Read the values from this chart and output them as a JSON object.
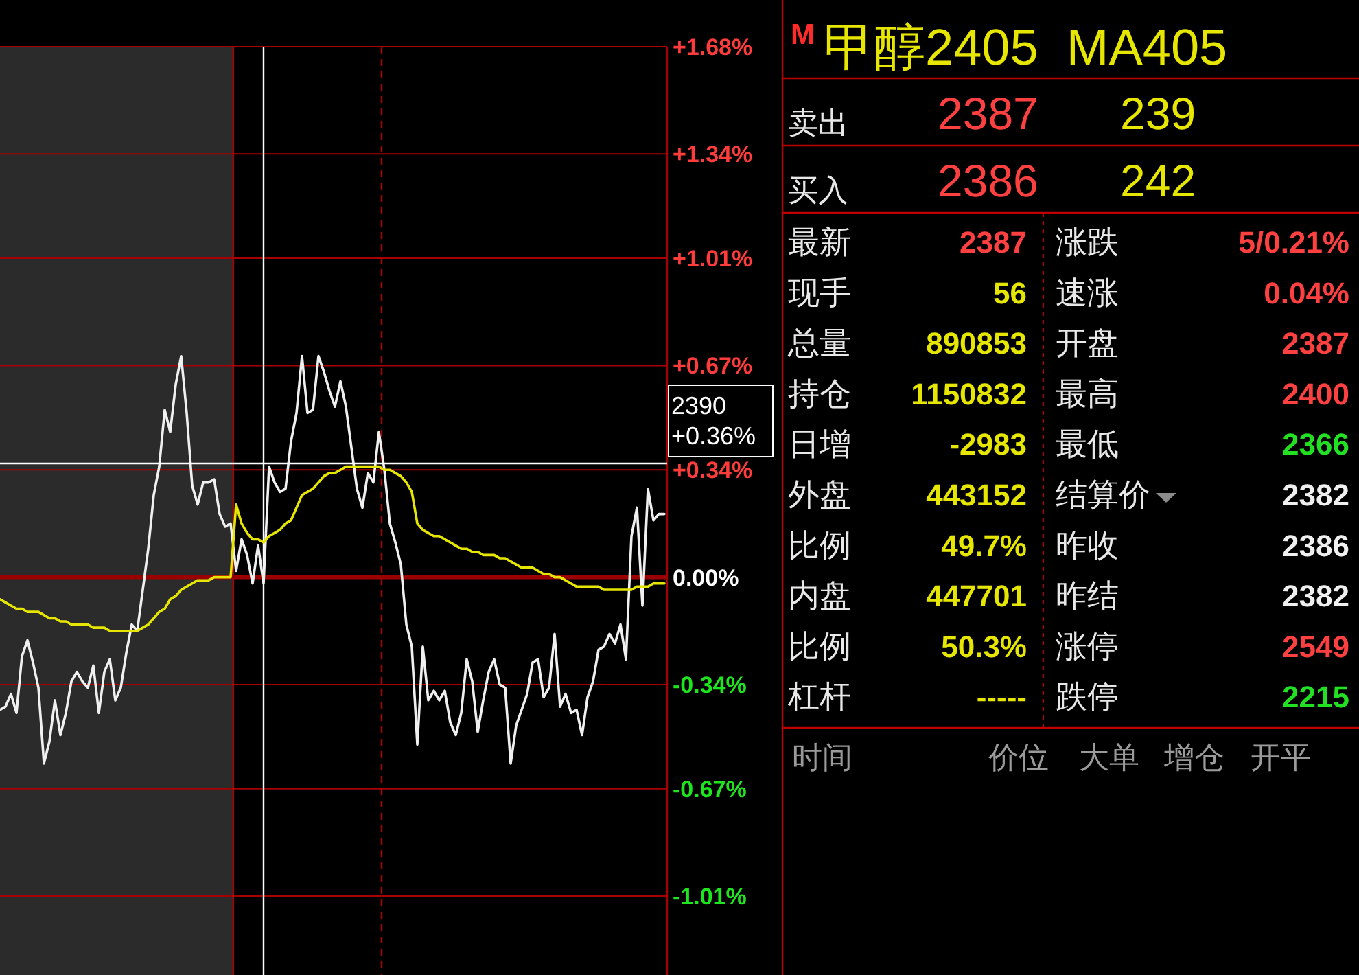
{
  "chart_data": [
    {
      "type": "line",
      "categories": [
        null,
        null,
        null,
        null,
        null,
        null,
        null,
        null,
        null,
        null,
        null,
        null,
        null,
        null,
        null,
        null,
        null,
        null,
        null,
        null,
        null,
        null,
        null,
        null,
        null,
        null,
        null,
        null,
        null,
        null,
        null,
        null,
        null,
        null,
        null,
        null,
        null,
        null,
        null,
        null,
        null,
        null,
        null,
        null,
        null,
        null,
        null,
        null,
        null,
        null,
        null,
        null,
        null,
        null,
        null,
        null,
        null,
        null,
        null,
        null,
        null,
        null,
        null,
        null,
        null,
        null,
        null,
        null,
        null,
        null,
        null,
        null,
        null,
        null,
        null,
        null,
        null,
        null,
        null,
        null,
        null,
        null,
        null,
        null,
        null,
        null,
        null,
        null,
        null,
        null,
        null,
        null,
        null,
        null,
        null,
        null,
        null,
        null,
        null,
        null,
        null,
        null,
        null,
        null,
        null,
        null,
        null,
        null,
        null,
        null,
        null,
        null,
        null,
        null,
        null,
        null,
        null,
        null,
        null,
        null,
        null,
        null
      ],
      "ylim": [
        -1.26,
        1.68
      ],
      "yticks": [
        {
          "value": 1.68,
          "label": "+1.68%"
        },
        {
          "value": 1.34,
          "label": "+1.34%"
        },
        {
          "value": 1.01,
          "label": "+1.01%"
        },
        {
          "value": 0.67,
          "label": "+0.67%"
        },
        {
          "value": 0.34,
          "label": "+0.34%"
        },
        {
          "value": 0,
          "label": "0.00%"
        },
        {
          "value": -0.34,
          "label": "-0.34%"
        },
        {
          "value": -0.67,
          "label": "-0.67%"
        },
        {
          "value": -1.01,
          "label": "-1.01%"
        }
      ],
      "grid": "y",
      "tick_labels": "y",
      "ref_lines": [
        {
          "axis": "y",
          "value": 0,
          "color": "#9a0000"
        },
        {
          "axis": "y",
          "value": 0.36,
          "color": "#ffffff",
          "label": "2390 +0.36%"
        }
      ],
      "series": [
        {
          "color": "#f0f0f0",
          "values": [
            -0.42,
            -0.41,
            -0.37,
            -0.43,
            -0.25,
            -0.2,
            -0.27,
            -0.35,
            -0.59,
            -0.52,
            -0.39,
            -0.5,
            -0.43,
            -0.33,
            -0.3,
            -0.33,
            -0.35,
            -0.28,
            -0.43,
            -0.3,
            -0.26,
            -0.39,
            -0.35,
            -0.24,
            -0.15,
            -0.17,
            -0.04,
            0.09,
            0.26,
            0.35,
            0.53,
            0.46,
            0.61,
            0.7,
            0.52,
            0.29,
            0.23,
            0.3,
            0.3,
            0.31,
            0.2,
            0.16,
            0.17,
            0.02,
            0.12,
            0.07,
            -0.02,
            0.1,
            -0.02,
            0.35,
            0.3,
            0.27,
            0.28,
            0.43,
            0.52,
            0.7,
            0.52,
            0.53,
            0.7,
            0.65,
            0.59,
            0.54,
            0.62,
            0.54,
            0.41,
            0.28,
            0.22,
            0.33,
            0.3,
            0.46,
            0.34,
            0.17,
            0.11,
            0.04,
            -0.15,
            -0.22,
            -0.53,
            -0.22,
            -0.39,
            -0.36,
            -0.39,
            -0.36,
            -0.46,
            -0.5,
            -0.43,
            -0.26,
            -0.33,
            -0.49,
            -0.39,
            -0.3,
            -0.26,
            -0.34,
            -0.35,
            -0.59,
            -0.47,
            -0.42,
            -0.37,
            -0.27,
            -0.26,
            -0.38,
            -0.35,
            -0.18,
            -0.41,
            -0.37,
            -0.43,
            -0.42,
            -0.5,
            -0.38,
            -0.33,
            -0.23,
            -0.22,
            -0.18,
            -0.21,
            -0.15,
            -0.26,
            0.13,
            0.22,
            -0.09,
            0.28,
            0.18,
            0.2,
            0.2
          ]
        },
        {
          "color": "#e6e600",
          "values": [
            -0.07,
            -0.08,
            -0.09,
            -0.1,
            -0.1,
            -0.11,
            -0.11,
            -0.11,
            -0.12,
            -0.13,
            -0.13,
            -0.14,
            -0.14,
            -0.15,
            -0.15,
            -0.15,
            -0.15,
            -0.16,
            -0.16,
            -0.16,
            -0.17,
            -0.17,
            -0.17,
            -0.17,
            -0.17,
            -0.17,
            -0.16,
            -0.15,
            -0.13,
            -0.11,
            -0.1,
            -0.07,
            -0.06,
            -0.04,
            -0.03,
            -0.02,
            -0.01,
            -0.01,
            -0.01,
            0,
            0,
            0,
            0,
            0.23,
            0.17,
            0.14,
            0.12,
            0.12,
            0.11,
            0.13,
            0.14,
            0.15,
            0.17,
            0.18,
            0.22,
            0.26,
            0.27,
            0.28,
            0.3,
            0.32,
            0.33,
            0.33,
            0.34,
            0.35,
            0.35,
            0.35,
            0.35,
            0.35,
            0.35,
            0.35,
            0.34,
            0.34,
            0.33,
            0.32,
            0.3,
            0.27,
            0.17,
            0.15,
            0.14,
            0.13,
            0.13,
            0.12,
            0.11,
            0.1,
            0.09,
            0.09,
            0.08,
            0.08,
            0.07,
            0.07,
            0.07,
            0.06,
            0.06,
            0.05,
            0.04,
            0.03,
            0.03,
            0.03,
            0.02,
            0.01,
            0.01,
            0,
            0,
            -0.01,
            -0.02,
            -0.03,
            -0.03,
            -0.03,
            -0.03,
            -0.03,
            -0.04,
            -0.04,
            -0.04,
            -0.04,
            -0.04,
            -0.04,
            -0.03,
            -0.03,
            -0.03,
            -0.02,
            -0.02,
            -0.02
          ]
        }
      ]
    },
    {
      "type": "other",
      "title": "甲醇2405  MA405",
      "annotations": [
        "M",
        "卖出",
        "2387",
        "239",
        "买入",
        "2386",
        "242",
        "最新",
        "2387",
        "涨跌",
        "5/0.21%",
        "现手",
        "56",
        "速涨",
        "0.04%",
        "总量",
        "890853",
        "开盘",
        "2387",
        "持仓",
        "1150832",
        "最高",
        "2400",
        "日增",
        "-2983",
        "最低",
        "2366",
        "外盘",
        "443152",
        "结算价",
        "2382",
        "比例",
        "49.7%",
        "昨收",
        "2386",
        "内盘",
        "447701",
        "昨结",
        "2382",
        "比例",
        "50.3%",
        "涨停",
        "2549",
        "杠杆",
        "-----",
        "跌停",
        "2215",
        "时间",
        "价位",
        "大单",
        "增仓",
        "开平"
      ]
    }
  ]
}
